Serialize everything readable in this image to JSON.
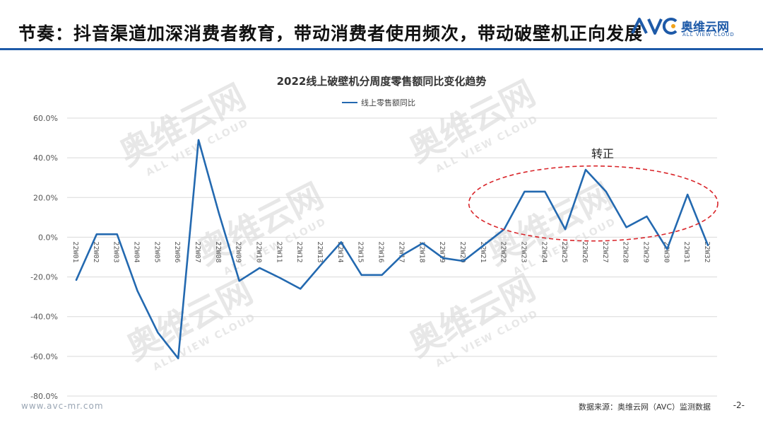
{
  "header": {
    "title": "节奏：抖音渠道加深消费者教育，带动消费者使用频次，带动破壁机正向发展"
  },
  "logo": {
    "brand_cn": "奥维云网",
    "brand_en": "ALL VIEW CLOUD",
    "brand_color": "#1e5aa8"
  },
  "chart_data": {
    "type": "line",
    "title": "2022线上破壁机分周度零售额同比变化趋势",
    "categories": [
      "22W01",
      "22W02",
      "22W03",
      "22W04",
      "22W05",
      "22W06",
      "22W07",
      "22W08",
      "22W09",
      "22W10",
      "22W11",
      "22W12",
      "22W13",
      "22W14",
      "22W15",
      "22W16",
      "22W17",
      "22W18",
      "22W19",
      "22W20",
      "22W21",
      "22W22",
      "22W23",
      "22W24",
      "22W25",
      "22W26",
      "22W27",
      "22W28",
      "22W29",
      "22W30",
      "22W31",
      "22W32"
    ],
    "series": [
      {
        "name": "线上零售额同比",
        "color": "#2369b0",
        "values": [
          -21.5,
          1.5,
          1.5,
          -27,
          -48,
          -61,
          49,
          12,
          -22,
          -15.5,
          -20.5,
          -26,
          -14,
          -2.5,
          -19,
          -19,
          -9,
          -3,
          -10.5,
          -12,
          -4,
          4,
          23,
          23,
          4,
          34,
          23,
          5,
          10.5,
          -6,
          21.5,
          -4
        ]
      }
    ],
    "ylim": [
      -80,
      60
    ],
    "yticks": [
      60,
      40,
      20,
      0,
      -20,
      -40,
      -60,
      -80
    ],
    "ytick_labels": [
      "60.0%",
      "40.0%",
      "20.0%",
      "0.0%",
      "-20.0%",
      "-40.0%",
      "-60.0%",
      "-80.0%"
    ],
    "legend_position": "top-center",
    "grid": true,
    "annotation": {
      "text": "转正",
      "highlight": "dashed ellipse around 22W22–22W32",
      "color": "#d9262b"
    }
  },
  "footer": {
    "url": "www.avc-mr.com",
    "source": "数据来源：奥维云网（AVC）监测数据",
    "page": "-2-"
  }
}
